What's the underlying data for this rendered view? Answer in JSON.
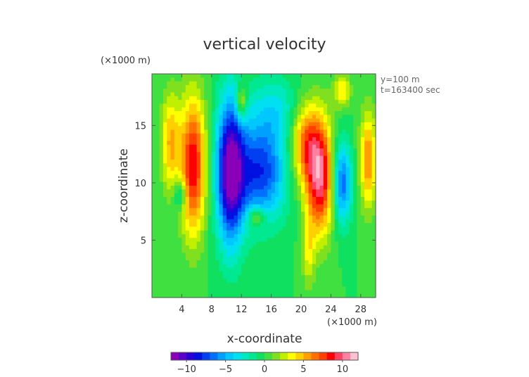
{
  "chart_data": {
    "type": "heatmap",
    "title": "vertical velocity",
    "xlabel": "x-coordinate",
    "ylabel": "z-coordinate",
    "x_unit": "(×1000 m)",
    "y_unit": "(×1000 m)",
    "xlim": [
      0,
      30
    ],
    "ylim": [
      0,
      19.5
    ],
    "x_ticks": [
      4,
      8,
      12,
      16,
      20,
      24,
      28
    ],
    "y_ticks": [
      5,
      10,
      15
    ],
    "x_tick_labels": [
      "4",
      "8",
      "12",
      "16",
      "20",
      "24",
      "28"
    ],
    "y_tick_labels": [
      "5",
      "10",
      "15"
    ],
    "annotations": [
      "y=100 m",
      "t=163400 sec"
    ],
    "colorbar": {
      "min": -12,
      "max": 12,
      "levels": 24,
      "tick_values": [
        -10,
        -5,
        0,
        5,
        10
      ],
      "tick_labels": [
        "−10",
        "−5",
        "0",
        "5",
        "10"
      ],
      "colors": [
        "#8a00b8",
        "#5a00c8",
        "#2a00d8",
        "#0010e0",
        "#0040f0",
        "#0070ff",
        "#00a0ff",
        "#00c8ff",
        "#00e0f0",
        "#00e8c0",
        "#00e890",
        "#10e060",
        "#40e040",
        "#80e020",
        "#c0f000",
        "#ffff00",
        "#ffd000",
        "#ffa000",
        "#ff7000",
        "#ff4000",
        "#ff0000",
        "#ff4060",
        "#ff80a0",
        "#ffc0d0"
      ]
    },
    "features": [
      {
        "x": 2.5,
        "z": 13.5,
        "sx": 0.9,
        "sz": 3.0,
        "value": 5
      },
      {
        "x": 5.5,
        "z": 11.5,
        "sx": 1.2,
        "sz": 4.2,
        "value": 9
      },
      {
        "x": 10.5,
        "z": 11.0,
        "sx": 1.3,
        "sz": 4.5,
        "value": -11
      },
      {
        "x": 14.5,
        "z": 11.0,
        "sx": 2.5,
        "sz": 3.0,
        "value": -8
      },
      {
        "x": 16.5,
        "z": 16.5,
        "sx": 2.5,
        "sz": 2.0,
        "value": -3
      },
      {
        "x": 22.5,
        "z": 10.5,
        "sx": 1.3,
        "sz": 3.5,
        "value": 10
      },
      {
        "x": 20.5,
        "z": 13.5,
        "sx": 1.4,
        "sz": 2.5,
        "value": 6
      },
      {
        "x": 25.5,
        "z": 10.0,
        "sx": 0.9,
        "sz": 2.5,
        "value": -7
      },
      {
        "x": 29.0,
        "z": 12.0,
        "sx": 0.8,
        "sz": 3.0,
        "value": 6
      },
      {
        "x": 3.8,
        "z": 9.0,
        "sx": 0.6,
        "sz": 1.0,
        "value": -4
      },
      {
        "x": 12.0,
        "z": 17.0,
        "sx": 0.5,
        "sz": 1.0,
        "value": 5
      },
      {
        "x": 14.0,
        "z": 7.0,
        "sx": 0.8,
        "sz": 0.6,
        "value": 4
      },
      {
        "x": 21.0,
        "z": 4.0,
        "sx": 0.6,
        "sz": 2.2,
        "value": 3
      },
      {
        "x": 25.5,
        "z": 18.0,
        "sx": 0.8,
        "sz": 1.0,
        "value": 4
      }
    ]
  }
}
